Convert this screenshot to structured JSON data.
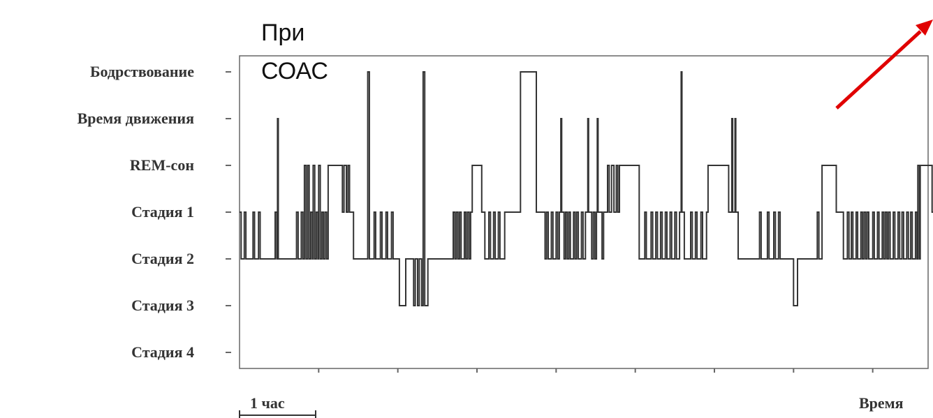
{
  "chart_data": {
    "type": "line",
    "step": true,
    "title": "",
    "xlabel": "Время",
    "ylabel": "",
    "annotation": "При СОАС",
    "scale_bar_label": "1 час",
    "x_unit": "hours",
    "xlim": [
      0,
      8.7
    ],
    "ylim": [
      0,
      6
    ],
    "grid": false,
    "y_categories": [
      "Стадия 4",
      "Стадия 3",
      "Стадия 2",
      "Стадия 1",
      "REM-сон",
      "Время движения",
      "Бодрствование"
    ],
    "series": [
      {
        "color": "#333333",
        "points": [
          [
            0.0,
            3
          ],
          [
            0.02,
            2
          ],
          [
            0.06,
            3
          ],
          [
            0.08,
            2
          ],
          [
            0.17,
            3
          ],
          [
            0.19,
            2
          ],
          [
            0.24,
            3
          ],
          [
            0.26,
            2
          ],
          [
            0.45,
            3
          ],
          [
            0.47,
            2
          ],
          [
            0.48,
            5
          ],
          [
            0.49,
            2
          ],
          [
            0.72,
            3
          ],
          [
            0.74,
            2
          ],
          [
            0.78,
            3
          ],
          [
            0.8,
            2
          ],
          [
            0.82,
            4
          ],
          [
            0.84,
            2
          ],
          [
            0.86,
            4
          ],
          [
            0.88,
            2
          ],
          [
            0.9,
            3
          ],
          [
            0.92,
            2
          ],
          [
            0.93,
            4
          ],
          [
            0.95,
            2
          ],
          [
            0.97,
            3
          ],
          [
            0.99,
            2
          ],
          [
            1.0,
            4
          ],
          [
            1.02,
            2
          ],
          [
            1.04,
            3
          ],
          [
            1.06,
            2
          ],
          [
            1.08,
            3
          ],
          [
            1.1,
            2
          ],
          [
            1.12,
            4
          ],
          [
            1.3,
            3
          ],
          [
            1.32,
            4
          ],
          [
            1.35,
            3
          ],
          [
            1.37,
            4
          ],
          [
            1.39,
            3
          ],
          [
            1.44,
            2
          ],
          [
            1.62,
            6
          ],
          [
            1.64,
            2
          ],
          [
            1.7,
            3
          ],
          [
            1.72,
            2
          ],
          [
            1.78,
            3
          ],
          [
            1.8,
            2
          ],
          [
            1.85,
            3
          ],
          [
            1.87,
            2
          ],
          [
            1.92,
            3
          ],
          [
            1.94,
            2
          ],
          [
            2.02,
            1
          ],
          [
            2.1,
            2
          ],
          [
            2.2,
            1
          ],
          [
            2.22,
            2
          ],
          [
            2.25,
            1
          ],
          [
            2.27,
            2
          ],
          [
            2.3,
            1
          ],
          [
            2.32,
            6
          ],
          [
            2.34,
            1
          ],
          [
            2.38,
            2
          ],
          [
            2.7,
            3
          ],
          [
            2.72,
            2
          ],
          [
            2.74,
            3
          ],
          [
            2.76,
            2
          ],
          [
            2.78,
            3
          ],
          [
            2.8,
            2
          ],
          [
            2.84,
            3
          ],
          [
            2.86,
            2
          ],
          [
            2.88,
            3
          ],
          [
            2.9,
            2
          ],
          [
            2.92,
            3
          ],
          [
            2.94,
            4
          ],
          [
            3.06,
            3
          ],
          [
            3.1,
            2
          ],
          [
            3.15,
            3
          ],
          [
            3.17,
            2
          ],
          [
            3.21,
            3
          ],
          [
            3.23,
            2
          ],
          [
            3.27,
            3
          ],
          [
            3.29,
            2
          ],
          [
            3.35,
            3
          ],
          [
            3.55,
            6
          ],
          [
            3.75,
            3
          ],
          [
            3.86,
            2
          ],
          [
            3.88,
            3
          ],
          [
            3.9,
            2
          ],
          [
            3.94,
            3
          ],
          [
            3.96,
            2
          ],
          [
            4.0,
            3
          ],
          [
            4.02,
            2
          ],
          [
            4.04,
            3
          ],
          [
            4.06,
            5
          ],
          [
            4.07,
            3
          ],
          [
            4.1,
            2
          ],
          [
            4.12,
            3
          ],
          [
            4.14,
            2
          ],
          [
            4.16,
            3
          ],
          [
            4.18,
            2
          ],
          [
            4.22,
            3
          ],
          [
            4.24,
            2
          ],
          [
            4.26,
            3
          ],
          [
            4.28,
            2
          ],
          [
            4.32,
            3
          ],
          [
            4.34,
            2
          ],
          [
            4.37,
            3
          ],
          [
            4.4,
            5
          ],
          [
            4.41,
            3
          ],
          [
            4.45,
            2
          ],
          [
            4.47,
            3
          ],
          [
            4.49,
            2
          ],
          [
            4.51,
            3
          ],
          [
            4.52,
            5
          ],
          [
            4.53,
            3
          ],
          [
            4.58,
            2
          ],
          [
            4.6,
            3
          ],
          [
            4.65,
            4
          ],
          [
            4.67,
            3
          ],
          [
            4.7,
            4
          ],
          [
            4.73,
            3
          ],
          [
            4.76,
            4
          ],
          [
            4.78,
            3
          ],
          [
            4.8,
            4
          ],
          [
            5.05,
            2
          ],
          [
            5.12,
            3
          ],
          [
            5.14,
            2
          ],
          [
            5.2,
            3
          ],
          [
            5.22,
            2
          ],
          [
            5.26,
            3
          ],
          [
            5.28,
            2
          ],
          [
            5.32,
            3
          ],
          [
            5.34,
            2
          ],
          [
            5.38,
            3
          ],
          [
            5.4,
            2
          ],
          [
            5.44,
            3
          ],
          [
            5.46,
            2
          ],
          [
            5.5,
            3
          ],
          [
            5.52,
            2
          ],
          [
            5.56,
            3
          ],
          [
            5.58,
            6
          ],
          [
            5.59,
            3
          ],
          [
            5.62,
            2
          ],
          [
            5.7,
            3
          ],
          [
            5.72,
            2
          ],
          [
            5.76,
            3
          ],
          [
            5.78,
            2
          ],
          [
            5.83,
            3
          ],
          [
            5.85,
            2
          ],
          [
            5.9,
            3
          ],
          [
            5.92,
            4
          ],
          [
            6.18,
            3
          ],
          [
            6.22,
            5
          ],
          [
            6.23,
            3
          ],
          [
            6.26,
            5
          ],
          [
            6.27,
            3
          ],
          [
            6.3,
            2
          ],
          [
            6.57,
            3
          ],
          [
            6.59,
            2
          ],
          [
            6.67,
            3
          ],
          [
            6.69,
            2
          ],
          [
            6.75,
            3
          ],
          [
            6.77,
            2
          ],
          [
            6.81,
            3
          ],
          [
            6.83,
            2
          ],
          [
            6.9,
            2
          ],
          [
            7.0,
            1
          ],
          [
            7.05,
            2
          ],
          [
            7.3,
            3
          ],
          [
            7.32,
            2
          ],
          [
            7.36,
            4
          ],
          [
            7.54,
            3
          ],
          [
            7.63,
            2
          ],
          [
            7.68,
            3
          ],
          [
            7.7,
            2
          ],
          [
            7.73,
            3
          ],
          [
            7.75,
            2
          ],
          [
            7.79,
            3
          ],
          [
            7.81,
            2
          ],
          [
            7.85,
            3
          ],
          [
            7.87,
            2
          ],
          [
            7.89,
            3
          ],
          [
            7.91,
            2
          ],
          [
            7.93,
            3
          ],
          [
            7.95,
            2
          ],
          [
            8.0,
            3
          ],
          [
            8.02,
            2
          ],
          [
            8.06,
            3
          ],
          [
            8.08,
            2
          ],
          [
            8.12,
            3
          ],
          [
            8.14,
            2
          ],
          [
            8.16,
            3
          ],
          [
            8.18,
            2
          ],
          [
            8.2,
            3
          ],
          [
            8.22,
            2
          ],
          [
            8.26,
            3
          ],
          [
            8.28,
            2
          ],
          [
            8.32,
            3
          ],
          [
            8.34,
            2
          ],
          [
            8.37,
            3
          ],
          [
            8.39,
            2
          ],
          [
            8.43,
            3
          ],
          [
            8.45,
            2
          ],
          [
            8.48,
            3
          ],
          [
            8.5,
            2
          ],
          [
            8.54,
            3
          ],
          [
            8.56,
            2
          ],
          [
            8.57,
            4
          ],
          [
            8.59,
            2
          ],
          [
            8.6,
            4
          ],
          [
            8.75,
            3
          ],
          [
            8.8,
            2
          ],
          [
            8.88,
            6
          ],
          [
            8.9,
            6
          ]
        ]
      }
    ]
  }
}
